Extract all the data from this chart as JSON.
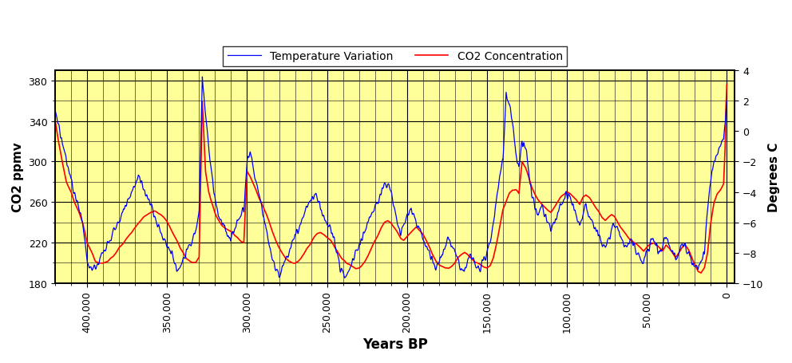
{
  "title": "",
  "xlabel": "Years BP",
  "ylabel_left": "CO2 ppmv",
  "ylabel_right": "Degrees C",
  "background_color": "#FFFF99",
  "grid_color": "#000000",
  "line_color_temp": "#0000FF",
  "line_color_co2": "#FF0000",
  "legend_label_temp": "Temperature Variation",
  "legend_label_co2": "CO2 Concentration",
  "xlim": [
    420000,
    -5000
  ],
  "ylim_co2": [
    180,
    390
  ],
  "ylim_temp": [
    -10,
    4
  ],
  "xticks": [
    400000,
    350000,
    300000,
    250000,
    200000,
    150000,
    100000,
    50000,
    0
  ],
  "yticks_co2": [
    180,
    220,
    260,
    300,
    340,
    380
  ],
  "yticks_temp": [
    -10,
    -8,
    -6,
    -4,
    -2,
    0,
    2,
    4
  ]
}
